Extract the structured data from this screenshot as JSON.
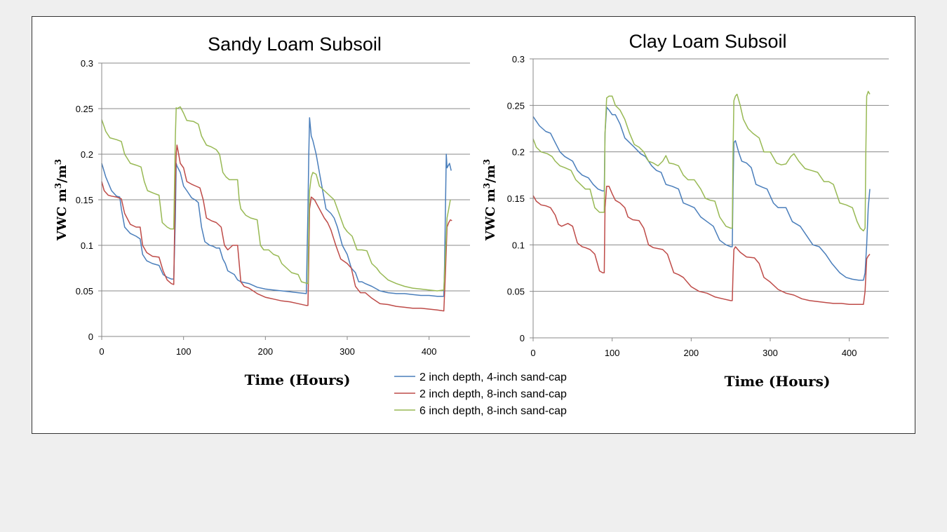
{
  "chart_data": [
    {
      "type": "line",
      "title": "Sandy Loam Subsoil",
      "xlabel": "Time (Hours)",
      "ylabel": "VWC m3/m3",
      "ylabel_main": "VWC m",
      "ylabel_sup1": "3",
      "ylabel_mid": "/m",
      "ylabel_sup2": "3",
      "xlim": [
        0,
        450
      ],
      "ylim": [
        0,
        0.3
      ],
      "xticks": [
        0,
        100,
        200,
        300,
        400
      ],
      "yticks": [
        0,
        0.05,
        0.1,
        0.15,
        0.2,
        0.25,
        0.3
      ],
      "yticklabels": [
        "0",
        "0.05",
        "0.1",
        "0.15",
        "0.2",
        "0.25",
        "0.3"
      ],
      "grid": true,
      "series": [
        {
          "name": "2 inch depth, 4-inch sand-cap",
          "color": "#4a7ebb",
          "x": [
            0,
            5,
            12,
            18,
            22,
            24,
            28,
            35,
            42,
            47,
            50,
            55,
            62,
            70,
            75,
            80,
            85,
            88,
            90,
            91,
            92,
            96,
            100,
            104,
            110,
            114,
            118,
            122,
            126,
            132,
            136,
            140,
            144,
            148,
            151,
            154,
            158,
            162,
            166,
            170,
            180,
            190,
            200,
            210,
            220,
            230,
            240,
            250,
            252,
            253,
            254,
            256,
            258,
            262,
            266,
            270,
            274,
            280,
            284,
            288,
            294,
            300,
            305,
            310,
            314,
            318,
            322,
            330,
            340,
            350,
            360,
            370,
            380,
            390,
            400,
            410,
            418,
            419,
            420,
            421,
            422,
            425,
            427
          ],
          "y": [
            0.19,
            0.175,
            0.16,
            0.154,
            0.153,
            0.14,
            0.12,
            0.113,
            0.11,
            0.107,
            0.09,
            0.083,
            0.08,
            0.078,
            0.068,
            0.065,
            0.063,
            0.063,
            0.13,
            0.19,
            0.187,
            0.18,
            0.165,
            0.16,
            0.152,
            0.15,
            0.147,
            0.12,
            0.104,
            0.1,
            0.099,
            0.097,
            0.097,
            0.085,
            0.08,
            0.072,
            0.07,
            0.068,
            0.062,
            0.06,
            0.058,
            0.054,
            0.052,
            0.051,
            0.05,
            0.049,
            0.048,
            0.047,
            0.14,
            0.2,
            0.24,
            0.22,
            0.215,
            0.2,
            0.18,
            0.16,
            0.14,
            0.135,
            0.13,
            0.12,
            0.1,
            0.09,
            0.075,
            0.07,
            0.06,
            0.06,
            0.058,
            0.055,
            0.05,
            0.048,
            0.047,
            0.047,
            0.046,
            0.045,
            0.045,
            0.044,
            0.044,
            0.08,
            0.14,
            0.2,
            0.185,
            0.19,
            0.182
          ]
        },
        {
          "name": "2 inch depth, 8-inch sand-cap",
          "color": "#be4b48",
          "x": [
            0,
            3,
            8,
            12,
            18,
            24,
            28,
            35,
            42,
            47,
            50,
            55,
            62,
            70,
            75,
            80,
            85,
            88,
            90,
            91,
            92,
            94,
            96,
            100,
            104,
            110,
            115,
            120,
            124,
            128,
            134,
            140,
            146,
            150,
            154,
            160,
            166,
            170,
            174,
            180,
            190,
            200,
            210,
            220,
            230,
            240,
            250,
            252,
            253,
            254,
            256,
            260,
            266,
            272,
            276,
            280,
            286,
            292,
            300,
            305,
            310,
            316,
            322,
            330,
            340,
            350,
            360,
            370,
            380,
            390,
            400,
            410,
            418,
            420,
            422,
            424,
            426,
            428
          ],
          "y": [
            0.17,
            0.16,
            0.155,
            0.154,
            0.153,
            0.151,
            0.135,
            0.123,
            0.12,
            0.12,
            0.1,
            0.092,
            0.088,
            0.087,
            0.072,
            0.062,
            0.058,
            0.057,
            0.17,
            0.2,
            0.21,
            0.2,
            0.19,
            0.185,
            0.17,
            0.167,
            0.165,
            0.163,
            0.15,
            0.13,
            0.127,
            0.125,
            0.12,
            0.1,
            0.095,
            0.1,
            0.1,
            0.06,
            0.055,
            0.053,
            0.047,
            0.043,
            0.041,
            0.039,
            0.038,
            0.036,
            0.034,
            0.034,
            0.085,
            0.14,
            0.153,
            0.15,
            0.14,
            0.13,
            0.125,
            0.117,
            0.1,
            0.085,
            0.08,
            0.075,
            0.055,
            0.048,
            0.048,
            0.042,
            0.036,
            0.035,
            0.033,
            0.032,
            0.031,
            0.031,
            0.03,
            0.029,
            0.028,
            0.07,
            0.12,
            0.125,
            0.128,
            0.127
          ]
        },
        {
          "name": "6 inch depth, 8-inch sand-cap",
          "color": "#98b954",
          "x": [
            0,
            5,
            10,
            18,
            24,
            28,
            35,
            42,
            48,
            52,
            56,
            64,
            70,
            74,
            80,
            84,
            88,
            90,
            91,
            92,
            96,
            100,
            104,
            112,
            118,
            122,
            128,
            134,
            140,
            144,
            148,
            152,
            156,
            160,
            166,
            168,
            170,
            176,
            182,
            190,
            194,
            198,
            204,
            210,
            216,
            220,
            226,
            232,
            240,
            244,
            248,
            252,
            253,
            254,
            256,
            258,
            262,
            266,
            272,
            278,
            284,
            290,
            296,
            300,
            306,
            312,
            318,
            324,
            330,
            336,
            340,
            350,
            360,
            370,
            380,
            390,
            400,
            410,
            418,
            420,
            422,
            424,
            426
          ],
          "y": [
            0.238,
            0.225,
            0.218,
            0.216,
            0.214,
            0.2,
            0.19,
            0.188,
            0.186,
            0.17,
            0.16,
            0.157,
            0.155,
            0.125,
            0.12,
            0.118,
            0.118,
            0.22,
            0.251,
            0.25,
            0.252,
            0.245,
            0.237,
            0.236,
            0.233,
            0.22,
            0.21,
            0.208,
            0.205,
            0.2,
            0.18,
            0.175,
            0.172,
            0.172,
            0.172,
            0.15,
            0.14,
            0.133,
            0.13,
            0.128,
            0.1,
            0.095,
            0.095,
            0.09,
            0.088,
            0.08,
            0.075,
            0.07,
            0.068,
            0.06,
            0.059,
            0.058,
            0.12,
            0.16,
            0.175,
            0.18,
            0.178,
            0.165,
            0.16,
            0.155,
            0.15,
            0.135,
            0.12,
            0.115,
            0.11,
            0.095,
            0.095,
            0.094,
            0.08,
            0.075,
            0.07,
            0.062,
            0.058,
            0.055,
            0.053,
            0.052,
            0.051,
            0.05,
            0.051,
            0.09,
            0.13,
            0.14,
            0.15
          ]
        }
      ]
    },
    {
      "type": "line",
      "title": "Clay Loam Subsoil",
      "xlabel": "Time (Hours)",
      "ylabel": "VWC m3/m3",
      "ylabel_main": "VWC m",
      "ylabel_sup1": "3",
      "ylabel_mid": "/m",
      "ylabel_sup2": "3",
      "xlim": [
        0,
        450
      ],
      "ylim": [
        0,
        0.3
      ],
      "xticks": [
        0,
        100,
        200,
        300,
        400
      ],
      "yticks": [
        0,
        0.05,
        0.1,
        0.15,
        0.2,
        0.25,
        0.3
      ],
      "yticklabels": [
        "0",
        "0.05",
        "0.1",
        "0.15",
        "0.2",
        "0.25",
        "0.3"
      ],
      "grid": true,
      "series": [
        {
          "name": "2 inch depth, 4-inch sand-cap",
          "color": "#4a7ebb",
          "x": [
            0,
            8,
            16,
            22,
            28,
            34,
            40,
            50,
            56,
            62,
            70,
            76,
            82,
            88,
            90,
            91,
            93,
            96,
            100,
            104,
            110,
            116,
            122,
            128,
            136,
            142,
            150,
            156,
            162,
            168,
            176,
            184,
            190,
            196,
            204,
            212,
            220,
            228,
            236,
            244,
            250,
            252,
            253,
            254,
            256,
            260,
            264,
            270,
            276,
            282,
            290,
            296,
            304,
            310,
            320,
            328,
            338,
            346,
            354,
            362,
            370,
            378,
            388,
            396,
            404,
            412,
            418,
            420,
            422,
            424,
            426
          ],
          "y": [
            0.238,
            0.228,
            0.222,
            0.22,
            0.21,
            0.2,
            0.195,
            0.19,
            0.18,
            0.175,
            0.172,
            0.165,
            0.16,
            0.158,
            0.158,
            0.22,
            0.248,
            0.245,
            0.24,
            0.24,
            0.23,
            0.215,
            0.21,
            0.205,
            0.198,
            0.195,
            0.185,
            0.18,
            0.178,
            0.165,
            0.163,
            0.16,
            0.145,
            0.143,
            0.14,
            0.13,
            0.125,
            0.12,
            0.105,
            0.1,
            0.098,
            0.098,
            0.16,
            0.21,
            0.212,
            0.2,
            0.19,
            0.188,
            0.183,
            0.165,
            0.162,
            0.16,
            0.145,
            0.14,
            0.14,
            0.125,
            0.12,
            0.11,
            0.1,
            0.098,
            0.09,
            0.08,
            0.07,
            0.065,
            0.063,
            0.062,
            0.062,
            0.07,
            0.1,
            0.14,
            0.16
          ]
        },
        {
          "name": "2 inch depth, 8-inch sand-cap",
          "color": "#be4b48",
          "x": [
            0,
            4,
            10,
            16,
            22,
            28,
            32,
            36,
            44,
            50,
            56,
            62,
            66,
            72,
            78,
            84,
            88,
            90,
            91,
            93,
            96,
            100,
            104,
            110,
            116,
            120,
            126,
            134,
            140,
            146,
            152,
            158,
            164,
            170,
            178,
            184,
            190,
            200,
            210,
            220,
            230,
            240,
            250,
            252,
            253,
            254,
            256,
            262,
            270,
            280,
            286,
            292,
            300,
            310,
            320,
            330,
            340,
            350,
            360,
            370,
            380,
            390,
            400,
            410,
            418,
            420,
            422,
            424,
            426
          ],
          "y": [
            0.153,
            0.147,
            0.143,
            0.142,
            0.14,
            0.132,
            0.122,
            0.12,
            0.123,
            0.12,
            0.102,
            0.098,
            0.097,
            0.095,
            0.09,
            0.072,
            0.07,
            0.07,
            0.14,
            0.163,
            0.163,
            0.155,
            0.148,
            0.145,
            0.14,
            0.13,
            0.127,
            0.126,
            0.118,
            0.1,
            0.097,
            0.096,
            0.095,
            0.09,
            0.07,
            0.068,
            0.065,
            0.055,
            0.05,
            0.048,
            0.044,
            0.042,
            0.04,
            0.04,
            0.07,
            0.095,
            0.098,
            0.092,
            0.087,
            0.086,
            0.08,
            0.065,
            0.06,
            0.052,
            0.048,
            0.046,
            0.042,
            0.04,
            0.039,
            0.038,
            0.037,
            0.037,
            0.036,
            0.036,
            0.036,
            0.05,
            0.085,
            0.088,
            0.09
          ]
        },
        {
          "name": "6 inch depth, 8-inch sand-cap",
          "color": "#98b954",
          "x": [
            0,
            4,
            10,
            18,
            24,
            28,
            34,
            40,
            48,
            54,
            60,
            66,
            72,
            78,
            84,
            88,
            90,
            91,
            93,
            96,
            100,
            104,
            110,
            116,
            122,
            128,
            134,
            140,
            146,
            152,
            158,
            164,
            168,
            172,
            178,
            184,
            190,
            196,
            204,
            212,
            218,
            224,
            230,
            236,
            244,
            250,
            252,
            253,
            254,
            256,
            258,
            262,
            266,
            272,
            278,
            286,
            292,
            300,
            308,
            314,
            320,
            326,
            330,
            336,
            344,
            352,
            360,
            368,
            374,
            380,
            388,
            396,
            404,
            410,
            414,
            418,
            420,
            421,
            422,
            424,
            426
          ],
          "y": [
            0.214,
            0.205,
            0.2,
            0.198,
            0.195,
            0.19,
            0.185,
            0.183,
            0.18,
            0.17,
            0.165,
            0.16,
            0.16,
            0.14,
            0.135,
            0.135,
            0.135,
            0.22,
            0.258,
            0.26,
            0.26,
            0.25,
            0.245,
            0.235,
            0.22,
            0.208,
            0.205,
            0.2,
            0.19,
            0.188,
            0.185,
            0.19,
            0.196,
            0.188,
            0.187,
            0.185,
            0.175,
            0.17,
            0.17,
            0.16,
            0.15,
            0.148,
            0.147,
            0.13,
            0.12,
            0.118,
            0.118,
            0.2,
            0.255,
            0.26,
            0.262,
            0.25,
            0.235,
            0.225,
            0.22,
            0.215,
            0.2,
            0.2,
            0.188,
            0.186,
            0.187,
            0.195,
            0.198,
            0.19,
            0.182,
            0.18,
            0.178,
            0.168,
            0.168,
            0.165,
            0.145,
            0.143,
            0.14,
            0.125,
            0.118,
            0.115,
            0.118,
            0.2,
            0.26,
            0.265,
            0.262
          ]
        }
      ]
    }
  ],
  "legend": {
    "items": [
      {
        "name": "2 inch depth, 4-inch sand-cap",
        "color": "#4a7ebb"
      },
      {
        "name": "2 inch depth, 8-inch sand-cap",
        "color": "#be4b48"
      },
      {
        "name": "6 inch depth, 8-inch sand-cap",
        "color": "#98b954"
      }
    ]
  }
}
